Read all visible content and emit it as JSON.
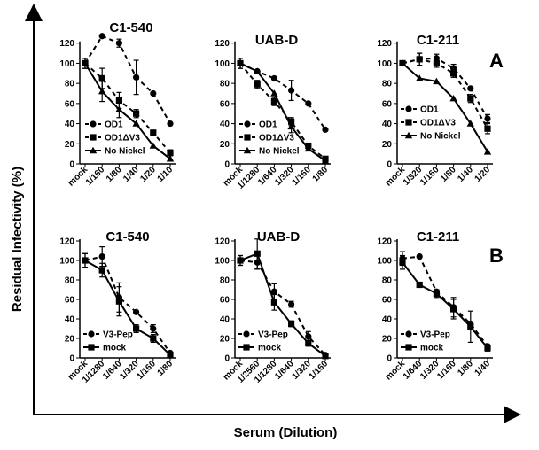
{
  "figure": {
    "ylabel": "Residual Infectivity (%)",
    "xlabel": "Serum (Dilution)",
    "panel_labels": [
      "A",
      "B"
    ]
  },
  "chart_data": [
    {
      "type": "line",
      "panel": "A",
      "title": "C1-540",
      "ylim": [
        0,
        140
      ],
      "yticks": [
        0,
        20,
        40,
        60,
        80,
        100,
        120
      ],
      "categories": [
        "mock",
        "1/160",
        "1/80",
        "1/40",
        "1/20",
        "1/10"
      ],
      "series": [
        {
          "name": "OD1",
          "style": "dashed",
          "marker": "circle",
          "values": [
            100,
            127,
            120,
            86,
            70,
            40
          ],
          "errors": [
            5,
            0,
            4,
            17,
            0,
            0
          ]
        },
        {
          "name": "OD1ΔV3",
          "style": "dashed",
          "marker": "square",
          "values": [
            100,
            85,
            63,
            50,
            31,
            11
          ],
          "errors": [
            5,
            10,
            8,
            4,
            0,
            3
          ]
        },
        {
          "name": "No Nickel",
          "style": "solid",
          "marker": "triangle",
          "values": [
            100,
            72,
            54,
            40,
            18,
            5
          ],
          "errors": [
            5,
            10,
            8,
            0,
            0,
            0
          ]
        }
      ],
      "legend": [
        {
          "label": "OD1",
          "marker": "circle",
          "style": "dashed"
        },
        {
          "label": "OD1ΔV3",
          "marker": "square",
          "style": "dashed"
        },
        {
          "label": "No Nickel",
          "marker": "triangle",
          "style": "solid"
        }
      ]
    },
    {
      "type": "line",
      "panel": "A",
      "title": "UAB-D",
      "ylim": [
        0,
        140
      ],
      "yticks": [
        0,
        20,
        40,
        60,
        80,
        100,
        120
      ],
      "categories": [
        "mock",
        "1/1280",
        "1/640",
        "1/320",
        "1/160",
        "1/80"
      ],
      "series": [
        {
          "name": "OD1",
          "style": "dashed",
          "marker": "circle",
          "values": [
            100,
            92,
            85,
            73,
            60,
            34
          ],
          "errors": [
            5,
            0,
            0,
            10,
            0,
            0
          ]
        },
        {
          "name": "OD1ΔV3",
          "style": "dashed",
          "marker": "square",
          "values": [
            100,
            79,
            62,
            42,
            18,
            5
          ],
          "errors": [
            5,
            4,
            4,
            4,
            0,
            0
          ]
        },
        {
          "name": "No Nickel",
          "style": "solid",
          "marker": "triangle",
          "values": [
            100,
            92,
            70,
            37,
            15,
            3
          ],
          "errors": [
            5,
            0,
            0,
            6,
            0,
            0
          ]
        }
      ],
      "legend": [
        {
          "label": "OD1",
          "marker": "circle",
          "style": "dashed"
        },
        {
          "label": "OD1ΔV3",
          "marker": "square",
          "style": "dashed"
        },
        {
          "label": "No Nickel",
          "marker": "triangle",
          "style": "solid"
        }
      ]
    },
    {
      "type": "line",
      "panel": "A",
      "title": "C1-211",
      "ylim": [
        0,
        140
      ],
      "yticks": [
        0,
        20,
        40,
        60,
        80,
        100,
        120
      ],
      "categories": [
        "mock",
        "1/320",
        "1/160",
        "1/80",
        "1/40",
        "1/20"
      ],
      "series": [
        {
          "name": "OD1",
          "style": "dashed",
          "marker": "circle",
          "values": [
            100,
            104,
            105,
            95,
            75,
            45
          ],
          "errors": [
            0,
            6,
            4,
            4,
            0,
            4
          ]
        },
        {
          "name": "OD1ΔV3",
          "style": "dashed",
          "marker": "square",
          "values": [
            100,
            104,
            100,
            90,
            65,
            35
          ],
          "errors": [
            0,
            6,
            4,
            4,
            4,
            5
          ]
        },
        {
          "name": "No Nickel",
          "style": "solid",
          "marker": "triangle",
          "values": [
            100,
            85,
            82,
            65,
            40,
            12
          ],
          "errors": [
            0,
            0,
            0,
            0,
            0,
            0
          ]
        }
      ],
      "legend": [
        {
          "label": "OD1",
          "marker": "circle",
          "style": "dashed"
        },
        {
          "label": "OD1ΔV3",
          "marker": "square",
          "style": "dashed"
        },
        {
          "label": "No Nickel",
          "marker": "triangle",
          "style": "solid"
        }
      ]
    },
    {
      "type": "line",
      "panel": "B",
      "title": "C1-540",
      "ylim": [
        0,
        120
      ],
      "yticks": [
        0,
        20,
        40,
        60,
        80,
        100,
        120
      ],
      "categories": [
        "mock",
        "1/1280",
        "1/640",
        "1/320",
        "1/160",
        "1/80"
      ],
      "series": [
        {
          "name": "V3-Pep",
          "style": "dashed",
          "marker": "circle",
          "values": [
            100,
            104,
            62,
            47,
            30,
            5
          ],
          "errors": [
            7,
            10,
            15,
            0,
            4,
            0
          ]
        },
        {
          "name": "mock",
          "style": "solid",
          "marker": "square",
          "values": [
            100,
            90,
            58,
            30,
            20,
            3
          ],
          "errors": [
            7,
            7,
            15,
            4,
            4,
            0
          ]
        }
      ],
      "legend": [
        {
          "label": "V3-Pep",
          "marker": "circle",
          "style": "dashed"
        },
        {
          "label": "mock",
          "marker": "square",
          "style": "solid"
        }
      ]
    },
    {
      "type": "line",
      "panel": "B",
      "title": "UAB-D",
      "ylim": [
        0,
        120
      ],
      "yticks": [
        0,
        20,
        40,
        60,
        80,
        100,
        120
      ],
      "categories": [
        "mock",
        "1/2560",
        "1/1280",
        "1/640",
        "1/320",
        "1/160"
      ],
      "series": [
        {
          "name": "V3-Pep",
          "style": "dashed",
          "marker": "circle",
          "values": [
            100,
            98,
            68,
            55,
            22,
            3
          ],
          "errors": [
            5,
            7,
            8,
            3,
            5,
            0
          ]
        },
        {
          "name": "mock",
          "style": "solid",
          "marker": "square",
          "values": [
            100,
            107,
            57,
            35,
            15,
            2
          ],
          "errors": [
            5,
            15,
            8,
            3,
            3,
            0
          ]
        }
      ],
      "legend": [
        {
          "label": "V3-Pep",
          "marker": "circle",
          "style": "dashed"
        },
        {
          "label": "mock",
          "marker": "square",
          "style": "solid"
        }
      ]
    },
    {
      "type": "line",
      "panel": "B",
      "title": "C1-211",
      "ylim": [
        0,
        120
      ],
      "yticks": [
        0,
        20,
        40,
        60,
        80,
        100,
        120
      ],
      "categories": [
        "mock",
        "1/640",
        "1/320",
        "1/160",
        "1/80",
        "1/40"
      ],
      "series": [
        {
          "name": "V3-Pep",
          "style": "dashed",
          "marker": "circle",
          "values": [
            102,
            104,
            68,
            52,
            35,
            12
          ],
          "errors": [
            7,
            0,
            0,
            10,
            0,
            0
          ]
        },
        {
          "name": "mock",
          "style": "solid",
          "marker": "square",
          "values": [
            98,
            75,
            66,
            50,
            32,
            10
          ],
          "errors": [
            7,
            0,
            4,
            10,
            16,
            3
          ]
        }
      ],
      "legend": [
        {
          "label": "V3-Pep",
          "marker": "circle",
          "style": "dashed"
        },
        {
          "label": "mock",
          "marker": "square",
          "style": "solid"
        }
      ]
    }
  ]
}
